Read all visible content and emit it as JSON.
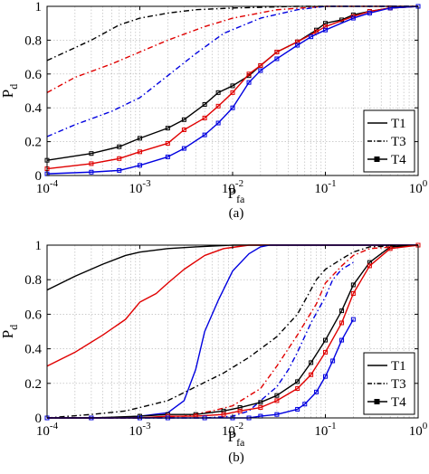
{
  "chart_data": [
    {
      "type": "line",
      "panel_label": "(a)",
      "xlabel": "P",
      "xlabel_sub": "fa",
      "ylabel": "P",
      "ylabel_sub": "d",
      "xscale": "log",
      "xlim": [
        0.0001,
        1
      ],
      "ylim": [
        0,
        1
      ],
      "x_ticks": [
        0.0001,
        0.001,
        0.01,
        0.1,
        1
      ],
      "x_tick_labels": [
        {
          "base": "10",
          "exp": "-4"
        },
        {
          "base": "10",
          "exp": "-3"
        },
        {
          "base": "10",
          "exp": "-2"
        },
        {
          "base": "10",
          "exp": "-1"
        },
        {
          "base": "10",
          "exp": "0"
        }
      ],
      "y_ticks": [
        0,
        0.2,
        0.4,
        0.6,
        0.8,
        1
      ],
      "y_tick_labels": [
        "0",
        "0.2",
        "0.4",
        "0.6",
        "0.8",
        "1"
      ],
      "grid": true,
      "legend": {
        "position": "lower-right",
        "entries": [
          {
            "label": "T1",
            "style": "solid"
          },
          {
            "label": "T3",
            "style": "dashdot"
          },
          {
            "label": "T4",
            "style": "square-markers"
          }
        ]
      },
      "series": [
        {
          "color": "#000000",
          "dash": "6,3,1.5,3",
          "marker": false,
          "x": [
            0.0001,
            0.0003,
            0.0006,
            0.001,
            0.002,
            0.004,
            0.01,
            0.05,
            1
          ],
          "y": [
            0.68,
            0.8,
            0.89,
            0.93,
            0.96,
            0.98,
            0.99,
            1.0,
            1.0
          ]
        },
        {
          "color": "#e00000",
          "dash": "6,3,1.5,3",
          "marker": false,
          "x": [
            0.0001,
            0.0002,
            0.0005,
            0.001,
            0.002,
            0.005,
            0.01,
            0.03,
            0.1,
            1
          ],
          "y": [
            0.49,
            0.58,
            0.66,
            0.73,
            0.8,
            0.88,
            0.93,
            0.98,
            1.0,
            1.0
          ]
        },
        {
          "color": "#0000e0",
          "dash": "6,3,1.5,3",
          "marker": false,
          "x": [
            0.0001,
            0.0002,
            0.0005,
            0.001,
            0.002,
            0.004,
            0.008,
            0.02,
            0.05,
            0.1,
            1
          ],
          "y": [
            0.23,
            0.3,
            0.38,
            0.46,
            0.59,
            0.72,
            0.84,
            0.93,
            0.98,
            1.0,
            1.0
          ]
        },
        {
          "color": "#000000",
          "dash": "",
          "marker": true,
          "x": [
            0.0001,
            0.0003,
            0.0006,
            0.001,
            0.002,
            0.003,
            0.005,
            0.007,
            0.01,
            0.015,
            0.02,
            0.03,
            0.05,
            0.08,
            0.1,
            0.15,
            0.2,
            0.3,
            0.5,
            1
          ],
          "y": [
            0.09,
            0.13,
            0.17,
            0.22,
            0.28,
            0.33,
            0.42,
            0.49,
            0.53,
            0.59,
            0.65,
            0.73,
            0.79,
            0.86,
            0.9,
            0.92,
            0.95,
            0.97,
            0.99,
            1.0
          ]
        },
        {
          "color": "#e00000",
          "dash": "",
          "marker": true,
          "x": [
            0.0001,
            0.0003,
            0.0006,
            0.001,
            0.002,
            0.003,
            0.005,
            0.007,
            0.01,
            0.015,
            0.02,
            0.03,
            0.05,
            0.08,
            0.1,
            0.2,
            0.3,
            0.5,
            1
          ],
          "y": [
            0.04,
            0.07,
            0.1,
            0.14,
            0.19,
            0.27,
            0.34,
            0.41,
            0.49,
            0.6,
            0.65,
            0.73,
            0.79,
            0.85,
            0.88,
            0.94,
            0.97,
            0.99,
            1.0
          ]
        },
        {
          "color": "#0000e0",
          "dash": "",
          "marker": true,
          "x": [
            0.0001,
            0.0003,
            0.0006,
            0.001,
            0.002,
            0.003,
            0.005,
            0.007,
            0.01,
            0.015,
            0.02,
            0.03,
            0.05,
            0.07,
            0.1,
            0.2,
            0.3,
            0.5,
            1
          ],
          "y": [
            0.01,
            0.02,
            0.03,
            0.06,
            0.11,
            0.16,
            0.24,
            0.31,
            0.4,
            0.55,
            0.62,
            0.69,
            0.77,
            0.82,
            0.86,
            0.93,
            0.96,
            0.99,
            1.0
          ]
        }
      ]
    },
    {
      "type": "line",
      "panel_label": "(b)",
      "xlabel": "P",
      "xlabel_sub": "fa",
      "ylabel": "P",
      "ylabel_sub": "d",
      "xscale": "log",
      "xlim": [
        0.0001,
        1
      ],
      "ylim": [
        0,
        1
      ],
      "x_ticks": [
        0.0001,
        0.001,
        0.01,
        0.1,
        1
      ],
      "x_tick_labels": [
        {
          "base": "10",
          "exp": "-4"
        },
        {
          "base": "10",
          "exp": "-3"
        },
        {
          "base": "10",
          "exp": "-2"
        },
        {
          "base": "10",
          "exp": "-1"
        },
        {
          "base": "10",
          "exp": "0"
        }
      ],
      "y_ticks": [
        0,
        0.2,
        0.4,
        0.6,
        0.8,
        1
      ],
      "y_tick_labels": [
        "0",
        "0.2",
        "0.4",
        "0.6",
        "0.8",
        "1"
      ],
      "grid": true,
      "legend": {
        "position": "lower-right",
        "entries": [
          {
            "label": "T1",
            "style": "solid"
          },
          {
            "label": "T3",
            "style": "dashdot"
          },
          {
            "label": "T4",
            "style": "square-markers"
          }
        ]
      },
      "series": [
        {
          "color": "#000000",
          "dash": "",
          "marker": false,
          "x": [
            0.0001,
            0.0002,
            0.0004,
            0.0007,
            0.001,
            0.002,
            0.004,
            0.01,
            1
          ],
          "y": [
            0.74,
            0.82,
            0.89,
            0.94,
            0.96,
            0.98,
            0.99,
            1.0,
            1.0
          ]
        },
        {
          "color": "#e00000",
          "dash": "",
          "marker": false,
          "x": [
            0.0001,
            0.0002,
            0.0004,
            0.0007,
            0.001,
            0.0015,
            0.002,
            0.003,
            0.005,
            0.008,
            0.015,
            0.02,
            1
          ],
          "y": [
            0.3,
            0.38,
            0.48,
            0.57,
            0.67,
            0.72,
            0.78,
            0.86,
            0.94,
            0.98,
            1.0,
            1.0,
            1.0
          ]
        },
        {
          "color": "#0000e0",
          "dash": "",
          "marker": false,
          "x": [
            0.0001,
            0.0005,
            0.001,
            0.002,
            0.003,
            0.004,
            0.005,
            0.007,
            0.01,
            0.015,
            0.02,
            0.025,
            1
          ],
          "y": [
            0.0,
            0.0,
            0.01,
            0.03,
            0.1,
            0.28,
            0.5,
            0.68,
            0.85,
            0.95,
            0.99,
            1.0,
            1.0
          ]
        },
        {
          "color": "#000000",
          "dash": "6,3,1.5,3",
          "marker": false,
          "x": [
            0.0001,
            0.0003,
            0.0007,
            0.001,
            0.002,
            0.004,
            0.008,
            0.015,
            0.03,
            0.05,
            0.08,
            0.1,
            0.15,
            0.2,
            0.3,
            1
          ],
          "y": [
            0.0,
            0.02,
            0.04,
            0.06,
            0.1,
            0.18,
            0.26,
            0.35,
            0.47,
            0.6,
            0.8,
            0.86,
            0.92,
            0.96,
            0.99,
            1.0
          ]
        },
        {
          "color": "#e00000",
          "dash": "6,3,1.5,3",
          "marker": false,
          "x": [
            0.0001,
            0.001,
            0.003,
            0.006,
            0.01,
            0.02,
            0.03,
            0.05,
            0.08,
            0.1,
            0.15,
            0.2,
            0.3,
            1
          ],
          "y": [
            0.0,
            0.0,
            0.01,
            0.04,
            0.07,
            0.17,
            0.3,
            0.48,
            0.66,
            0.78,
            0.88,
            0.94,
            0.98,
            1.0
          ]
        },
        {
          "color": "#0000e0",
          "dash": "6,3,1.5,3",
          "marker": false,
          "x": [
            0.0001,
            0.005,
            0.01,
            0.015,
            0.02,
            0.03,
            0.04,
            0.05,
            0.07,
            0.1,
            0.12,
            0.15,
            0.2
          ],
          "y": [
            0.0,
            0.0,
            0.01,
            0.04,
            0.1,
            0.18,
            0.28,
            0.38,
            0.55,
            0.7,
            0.8,
            0.86,
            0.9
          ]
        },
        {
          "color": "#000000",
          "dash": "",
          "marker": true,
          "x": [
            0.0001,
            0.0003,
            0.001,
            0.002,
            0.004,
            0.008,
            0.012,
            0.02,
            0.03,
            0.05,
            0.07,
            0.1,
            0.15,
            0.2,
            0.3,
            0.5,
            1
          ],
          "y": [
            0.0,
            0.0,
            0.01,
            0.02,
            0.02,
            0.04,
            0.06,
            0.09,
            0.13,
            0.21,
            0.32,
            0.45,
            0.62,
            0.77,
            0.9,
            0.99,
            1.0
          ]
        },
        {
          "color": "#e00000",
          "dash": "",
          "marker": true,
          "x": [
            0.0001,
            0.0003,
            0.001,
            0.002,
            0.004,
            0.008,
            0.012,
            0.02,
            0.03,
            0.05,
            0.07,
            0.1,
            0.15,
            0.2,
            0.3,
            0.5,
            1
          ],
          "y": [
            0.0,
            0.0,
            0.0,
            0.01,
            0.01,
            0.02,
            0.04,
            0.06,
            0.1,
            0.17,
            0.25,
            0.38,
            0.55,
            0.72,
            0.88,
            0.98,
            1.0
          ]
        },
        {
          "color": "#0000e0",
          "dash": "",
          "marker": true,
          "x": [
            0.0001,
            0.0003,
            0.001,
            0.002,
            0.005,
            0.01,
            0.015,
            0.02,
            0.03,
            0.05,
            0.06,
            0.08,
            0.1,
            0.12,
            0.15,
            0.2
          ],
          "y": [
            0.0,
            0.0,
            0.0,
            0.0,
            0.0,
            0.0,
            0.0,
            0.01,
            0.02,
            0.05,
            0.08,
            0.15,
            0.24,
            0.33,
            0.45,
            0.57
          ]
        }
      ]
    }
  ]
}
